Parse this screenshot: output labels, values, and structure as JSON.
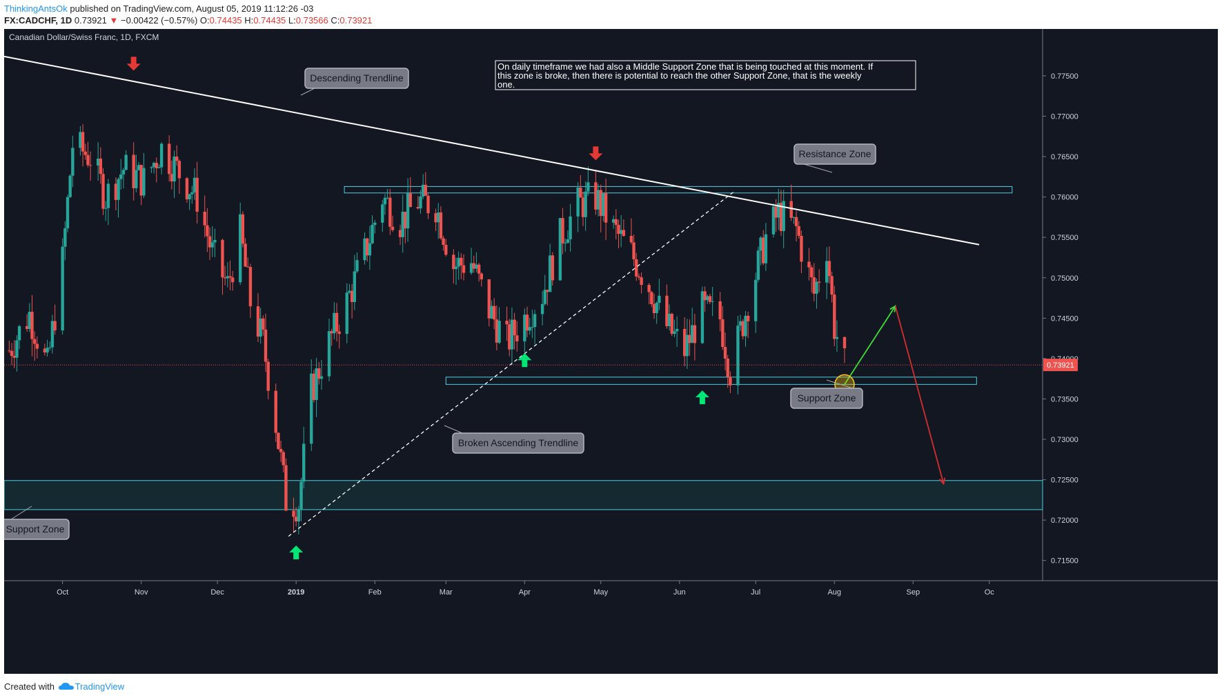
{
  "header": {
    "author": "ThinkingAntsOk",
    "published_text": "published on TradingView.com, August 05, 2019 11:12:26 -03",
    "symbol": "FX:CADCHF, 1D",
    "last": "0.73921",
    "change": "−0.00422 (−0.57%)",
    "open_label": "O:",
    "open": "0.74435",
    "high_label": "H:",
    "high": "0.74435",
    "low_label": "L:",
    "low": "0.73566",
    "close_label": "C:",
    "close": "0.73921"
  },
  "footer": {
    "created_with": "Created with",
    "brand": "TradingView"
  },
  "colors": {
    "background": "#131722",
    "up": "#26a69a",
    "down": "#ef5350",
    "zone": "#4dd0e1",
    "trendline": "#ffffff",
    "arrow_up": "#00e676",
    "arrow_down": "#e53935"
  },
  "chart_data": {
    "type": "candlestick",
    "title": "Canadian Dollar/Swiss Franc, 1D, FXCM",
    "y_ticks": [
      "0.77500",
      "0.77000",
      "0.76500",
      "0.76000",
      "0.75500",
      "0.75000",
      "0.74500",
      "0.74000",
      "0.73500",
      "0.73000",
      "0.72500",
      "0.72000",
      "0.71500"
    ],
    "ylim": [
      0.7125,
      0.7808
    ],
    "x_ticks": [
      {
        "label": "Oct",
        "date": "2018-10-01"
      },
      {
        "label": "Nov",
        "date": "2018-11-01"
      },
      {
        "label": "Dec",
        "date": "2018-12-01"
      },
      {
        "label": "2019",
        "date": "2019-01-01"
      },
      {
        "label": "Feb",
        "date": "2019-02-01"
      },
      {
        "label": "Mar",
        "date": "2019-03-01"
      },
      {
        "label": "Apr",
        "date": "2019-04-01"
      },
      {
        "label": "May",
        "date": "2019-05-01"
      },
      {
        "label": "Jun",
        "date": "2019-06-01"
      },
      {
        "label": "Jul",
        "date": "2019-07-01"
      },
      {
        "label": "Aug",
        "date": "2019-08-01"
      },
      {
        "label": "Sep",
        "date": "2019-09-01"
      },
      {
        "label": "Oc",
        "date": "2019-10-01"
      }
    ],
    "xlim": [
      "2018-09-08",
      "2019-10-22"
    ],
    "last_price": "0.73921",
    "price_path": [
      [
        "2018-09-10",
        0.741
      ],
      [
        "2018-09-18",
        0.7455
      ],
      [
        "2018-09-25",
        0.739
      ],
      [
        "2018-10-01",
        0.752
      ],
      [
        "2018-10-05",
        0.7665
      ],
      [
        "2018-10-12",
        0.765
      ],
      [
        "2018-10-18",
        0.76
      ],
      [
        "2018-10-25",
        0.7635
      ],
      [
        "2018-11-02",
        0.762
      ],
      [
        "2018-11-09",
        0.766
      ],
      [
        "2018-11-16",
        0.763
      ],
      [
        "2018-11-23",
        0.76
      ],
      [
        "2018-11-29",
        0.753
      ],
      [
        "2018-12-05",
        0.749
      ],
      [
        "2018-12-10",
        0.7555
      ],
      [
        "2018-12-14",
        0.747
      ],
      [
        "2018-12-19",
        0.742
      ],
      [
        "2018-12-24",
        0.732
      ],
      [
        "2018-12-28",
        0.7225
      ],
      [
        "2019-01-02",
        0.722
      ],
      [
        "2019-01-07",
        0.736
      ],
      [
        "2019-01-14",
        0.742
      ],
      [
        "2019-01-21",
        0.747
      ],
      [
        "2019-01-28",
        0.753
      ],
      [
        "2019-02-04",
        0.76
      ],
      [
        "2019-02-11",
        0.757
      ],
      [
        "2019-02-18",
        0.7595
      ],
      [
        "2019-02-25",
        0.759
      ],
      [
        "2019-03-04",
        0.7515
      ],
      [
        "2019-03-11",
        0.752
      ],
      [
        "2019-03-18",
        0.746
      ],
      [
        "2019-03-25",
        0.742
      ],
      [
        "2019-04-01",
        0.745
      ],
      [
        "2019-04-08",
        0.748
      ],
      [
        "2019-04-15",
        0.755
      ],
      [
        "2019-04-22",
        0.759
      ],
      [
        "2019-04-29",
        0.76
      ],
      [
        "2019-05-06",
        0.756
      ],
      [
        "2019-05-13",
        0.753
      ],
      [
        "2019-05-20",
        0.749
      ],
      [
        "2019-05-27",
        0.744
      ],
      [
        "2019-06-03",
        0.741
      ],
      [
        "2019-06-10",
        0.746
      ],
      [
        "2019-06-17",
        0.745
      ],
      [
        "2019-06-21",
        0.7385
      ],
      [
        "2019-06-28",
        0.747
      ],
      [
        "2019-07-05",
        0.755
      ],
      [
        "2019-07-10",
        0.758
      ],
      [
        "2019-07-17",
        0.756
      ],
      [
        "2019-07-24",
        0.748
      ],
      [
        "2019-07-29",
        0.754
      ],
      [
        "2019-08-01",
        0.744
      ],
      [
        "2019-08-05",
        0.7392
      ]
    ],
    "zones": [
      {
        "from": "2019-01-20",
        "to": "2019-10-10",
        "low": 0.7605,
        "high": 0.7613
      },
      {
        "from": "2019-03-01",
        "to": "2019-09-26",
        "low": 0.7368,
        "high": 0.7377
      },
      {
        "from": "2018-09-08",
        "to": "2019-10-22",
        "low": 0.7213,
        "high": 0.7249
      }
    ],
    "trendlines": [
      {
        "style": "solid",
        "from": [
          "2018-09-08",
          0.7774
        ],
        "to": [
          "2019-09-27",
          0.7541
        ]
      },
      {
        "style": "dashed",
        "from": [
          "2018-12-29",
          0.718
        ],
        "to": [
          "2019-06-23",
          0.7608
        ]
      }
    ],
    "projection": [
      {
        "color": "green",
        "from": [
          "2019-08-05",
          0.7368
        ],
        "to": [
          "2019-08-25",
          0.7465
        ]
      },
      {
        "color": "red",
        "from": [
          "2019-08-25",
          0.7465
        ],
        "to": [
          "2019-09-13",
          0.7245
        ]
      }
    ],
    "signal_arrows": [
      {
        "dir": "down",
        "date": "2018-10-29",
        "price": 0.7765
      },
      {
        "dir": "down",
        "date": "2019-04-29",
        "price": 0.7654
      },
      {
        "dir": "up",
        "date": "2019-01-01",
        "price": 0.716
      },
      {
        "dir": "up",
        "date": "2019-04-01",
        "price": 0.7398
      },
      {
        "dir": "up",
        "date": "2019-06-10",
        "price": 0.7352
      }
    ],
    "callouts": {
      "descending": "Descending Trendline",
      "resistance": "Resistance Zone",
      "support_mid": "Support Zone",
      "broken": "Broken Ascending Trendline",
      "support_low": "Support Zone"
    },
    "annotation": [
      "On daily timeframe we had also a Middle Support Zone that is being touched at this moment. If",
      "this zone is broke, then there is potential to reach the other Support Zone, that is the weekly",
      "one."
    ]
  }
}
